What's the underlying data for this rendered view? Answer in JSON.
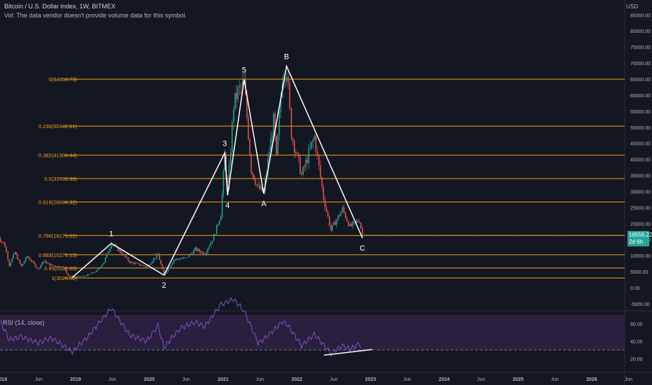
{
  "header": {
    "symbol_line": "Bitcoin / U.S. Dollar Index, 1W, BITMEX",
    "vol_note": "Vol: The data vendor doesn't provide volume data for this symbol."
  },
  "currency": "USD",
  "last_price": {
    "value": "16556.22",
    "countdown": "2d 6h"
  },
  "rsi": {
    "label": "RSI (14, close)",
    "ticks": [
      "60.00",
      "40.00",
      "20.00"
    ],
    "upper": 70,
    "lower": 30
  },
  "colors": {
    "background": "#131722",
    "fib_line": "#f7a01a",
    "fib_label": "#f7a01a",
    "up": "#26a69a",
    "down": "#ef5350",
    "wave": "#ffffff",
    "rsi": "#7e57c2",
    "rsi_band": "#2a1f3f",
    "axis_text": "#b2b5be"
  },
  "chart_data": {
    "type": "candlestick",
    "timeframe": "1W",
    "y_axis_ticks": [
      "85000.00",
      "80000.00",
      "75000.00",
      "70000.00",
      "65000.00",
      "60000.00",
      "55000.00",
      "50000.00",
      "45000.00",
      "40000.00",
      "35000.00",
      "30000.00",
      "25000.00",
      "20000.00",
      "15000.00",
      "10000.00",
      "5000.00",
      "0.00",
      "-5000.00"
    ],
    "x_axis_ticks": [
      "2018",
      "Jun",
      "2019",
      "Jun",
      "2020",
      "Jun",
      "2021",
      "Jun",
      "2022",
      "Jun",
      "2023",
      "Jun",
      "2024",
      "Jun",
      "2025",
      "Jun",
      "2026",
      "Jun"
    ],
    "fib_levels": [
      {
        "label": "0(64958.73)",
        "price": 64958.73
      },
      {
        "label": "0.236(50342.61)",
        "price": 50342.61
      },
      {
        "label": "0.382(41300.44)",
        "price": 41300.44
      },
      {
        "label": "0.5(33992.38)",
        "price": 33992.38
      },
      {
        "label": "0.618(26684.32)",
        "price": 26684.32
      },
      {
        "label": "0.786(16279.62)",
        "price": 16279.62
      },
      {
        "label": "0.883(10272.15)",
        "price": 10272.15
      },
      {
        "label": "0.95(6122.60)",
        "price": 6122.6
      },
      {
        "label": "1(3026.02)",
        "price": 3026.02
      }
    ],
    "wave_points": [
      {
        "label": "",
        "date": "2018-12-15",
        "price": 3200
      },
      {
        "label": "1",
        "date": "2019-06-26",
        "price": 13800
      },
      {
        "label": "2",
        "date": "2020-03-13",
        "price": 3900
      },
      {
        "label": "3",
        "date": "2021-01-08",
        "price": 42000
      },
      {
        "label": "4",
        "date": "2021-01-22",
        "price": 28800
      },
      {
        "label": "5",
        "date": "2021-04-14",
        "price": 64900
      },
      {
        "label": "A",
        "date": "2021-07-20",
        "price": 29300
      },
      {
        "label": "B",
        "date": "2021-11-10",
        "price": 69000
      },
      {
        "label": "C",
        "date": "2022-11-21",
        "price": 15500
      }
    ],
    "price_path": [
      [
        "2017-12-01",
        17000
      ],
      [
        "2018-01-15",
        13000
      ],
      [
        "2018-02-06",
        7000
      ],
      [
        "2018-03-05",
        11000
      ],
      [
        "2018-04-06",
        6600
      ],
      [
        "2018-05-05",
        9800
      ],
      [
        "2018-06-29",
        5800
      ],
      [
        "2018-07-24",
        8300
      ],
      [
        "2018-09-01",
        7000
      ],
      [
        "2018-11-01",
        6300
      ],
      [
        "2018-11-25",
        3800
      ],
      [
        "2018-12-15",
        3200
      ],
      [
        "2019-02-15",
        3600
      ],
      [
        "2019-04-15",
        5200
      ],
      [
        "2019-05-20",
        8000
      ],
      [
        "2019-06-26",
        13800
      ],
      [
        "2019-08-05",
        11500
      ],
      [
        "2019-09-25",
        8000
      ],
      [
        "2019-11-25",
        7000
      ],
      [
        "2019-12-18",
        6500
      ],
      [
        "2020-02-12",
        10400
      ],
      [
        "2020-03-13",
        3900
      ],
      [
        "2020-05-01",
        8800
      ],
      [
        "2020-07-01",
        9200
      ],
      [
        "2020-08-15",
        12000
      ],
      [
        "2020-10-01",
        10600
      ],
      [
        "2020-11-15",
        16000
      ],
      [
        "2020-12-20",
        23000
      ],
      [
        "2021-01-08",
        41000
      ],
      [
        "2021-01-22",
        30000
      ],
      [
        "2021-02-21",
        57000
      ],
      [
        "2021-03-14",
        61000
      ],
      [
        "2021-04-14",
        64000
      ],
      [
        "2021-05-19",
        37000
      ],
      [
        "2021-06-22",
        31000
      ],
      [
        "2021-07-20",
        29800
      ],
      [
        "2021-09-07",
        52000
      ],
      [
        "2021-09-21",
        40000
      ],
      [
        "2021-10-20",
        66000
      ],
      [
        "2021-11-10",
        68000
      ],
      [
        "2021-12-04",
        48000
      ],
      [
        "2022-01-24",
        35000
      ],
      [
        "2022-03-28",
        47000
      ],
      [
        "2022-05-12",
        28000
      ],
      [
        "2022-06-18",
        18000
      ],
      [
        "2022-08-14",
        24500
      ],
      [
        "2022-09-20",
        19000
      ],
      [
        "2022-11-05",
        21000
      ],
      [
        "2022-11-21",
        16556
      ]
    ],
    "rsi_path": [
      [
        "2017-12-01",
        72
      ],
      [
        "2018-02-06",
        42
      ],
      [
        "2018-04-06",
        45
      ],
      [
        "2018-06-29",
        38
      ],
      [
        "2018-09-01",
        44
      ],
      [
        "2018-12-15",
        28
      ],
      [
        "2019-03-01",
        45
      ],
      [
        "2019-06-26",
        78
      ],
      [
        "2019-09-25",
        47
      ],
      [
        "2019-12-18",
        40
      ],
      [
        "2020-02-12",
        58
      ],
      [
        "2020-03-13",
        33
      ],
      [
        "2020-06-01",
        55
      ],
      [
        "2020-08-15",
        62
      ],
      [
        "2020-10-01",
        57
      ],
      [
        "2020-12-20",
        82
      ],
      [
        "2021-02-21",
        88
      ],
      [
        "2021-04-14",
        75
      ],
      [
        "2021-06-22",
        38
      ],
      [
        "2021-07-20",
        42
      ],
      [
        "2021-10-20",
        62
      ],
      [
        "2021-11-10",
        60
      ],
      [
        "2022-01-24",
        35
      ],
      [
        "2022-03-28",
        48
      ],
      [
        "2022-06-18",
        26
      ],
      [
        "2022-08-14",
        35
      ],
      [
        "2022-09-20",
        31
      ],
      [
        "2022-11-05",
        37
      ],
      [
        "2022-11-21",
        32
      ]
    ],
    "rsi_divergence": [
      [
        "2022-06-18",
        26.5
      ],
      [
        "2022-11-21",
        33
      ]
    ]
  }
}
